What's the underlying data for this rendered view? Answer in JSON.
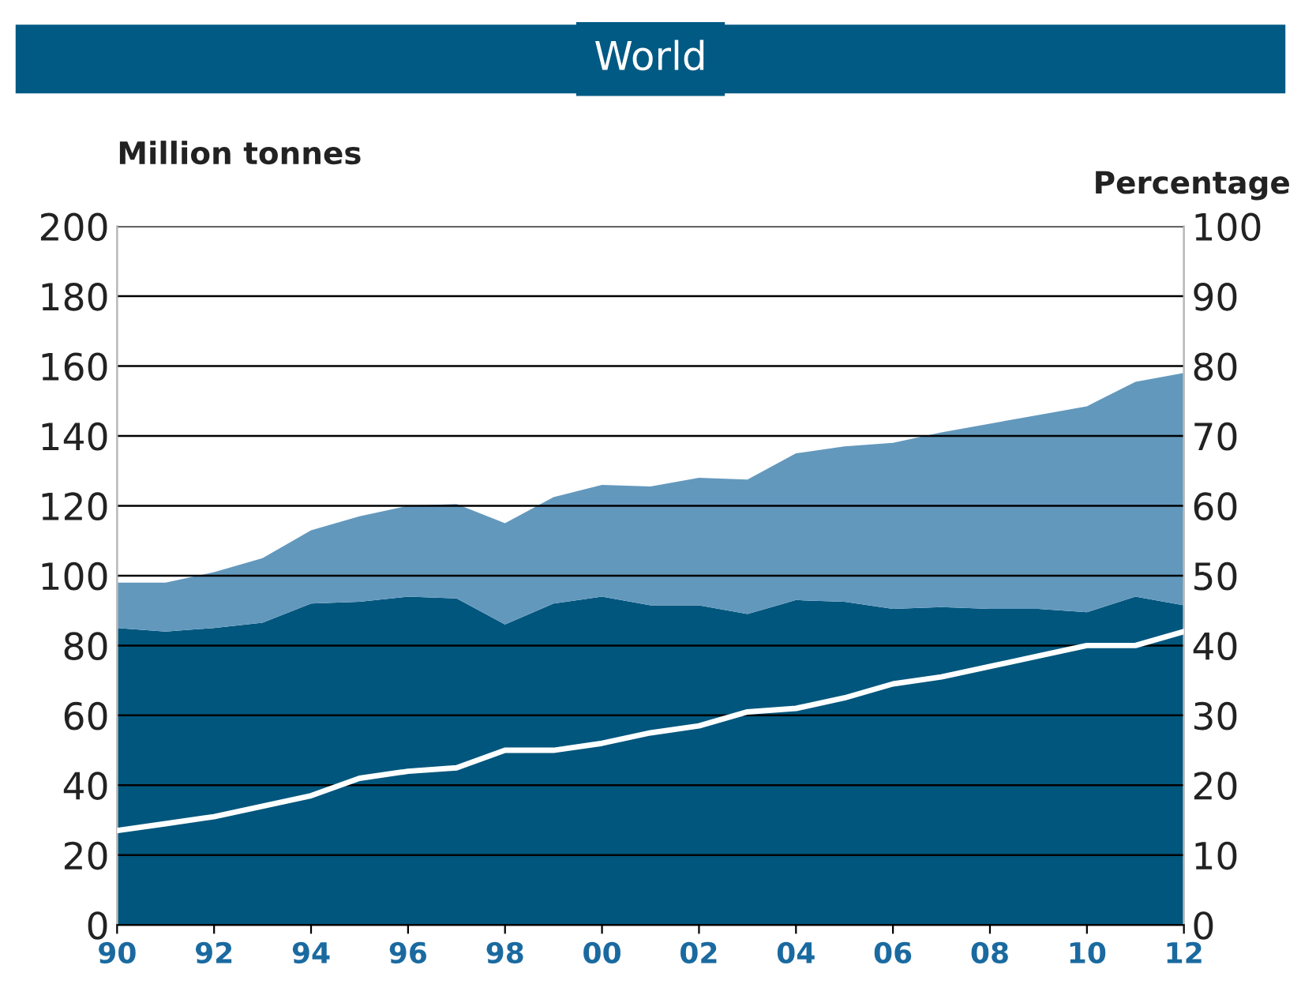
{
  "chart_data": {
    "type": "area",
    "title": "World",
    "ylabel": "Million tonnes",
    "y2label": "Percentage",
    "stacked": true,
    "x": [
      1990,
      1991,
      1992,
      1993,
      1994,
      1995,
      1996,
      1997,
      1998,
      1999,
      2000,
      2001,
      2002,
      2003,
      2004,
      2005,
      2006,
      2007,
      2008,
      2009,
      2010,
      2011,
      2012
    ],
    "series": [
      {
        "color": "#00567d",
        "values": [
          85,
          84,
          85,
          86.5,
          92,
          92.5,
          94,
          93.5,
          86,
          92,
          94,
          91.5,
          91.5,
          89,
          93,
          92.5,
          90.5,
          91,
          90.5,
          90.5,
          89.5,
          94,
          91.5
        ]
      },
      {
        "color": "#6398bd",
        "values": [
          13,
          14,
          16,
          18.5,
          21,
          24.5,
          26,
          27,
          29,
          30.5,
          32,
          34,
          36.5,
          38.5,
          42,
          44.5,
          47.5,
          50,
          53,
          55.5,
          59,
          61.5,
          66.5
        ]
      },
      {
        "type": "line",
        "axis": "y2",
        "color": "#ffffff",
        "values": [
          13.5,
          14.5,
          15.5,
          17,
          18.5,
          21,
          22,
          22.5,
          25,
          25,
          26,
          27.5,
          28.5,
          30.5,
          31,
          32.5,
          34.5,
          35.5,
          37,
          38.5,
          40,
          40,
          42
        ]
      }
    ],
    "xlim": [
      1990,
      2012
    ],
    "xticks": [
      {
        "value": 1990,
        "label": "90"
      },
      {
        "value": 1992,
        "label": "92"
      },
      {
        "value": 1994,
        "label": "94"
      },
      {
        "value": 1996,
        "label": "96"
      },
      {
        "value": 1998,
        "label": "98"
      },
      {
        "value": 2000,
        "label": "00"
      },
      {
        "value": 2002,
        "label": "02"
      },
      {
        "value": 2004,
        "label": "04"
      },
      {
        "value": 2006,
        "label": "06"
      },
      {
        "value": 2008,
        "label": "08"
      },
      {
        "value": 2010,
        "label": "10"
      },
      {
        "value": 2012,
        "label": "12"
      }
    ],
    "ylim": [
      0,
      200
    ],
    "yticks": [
      0,
      20,
      40,
      60,
      80,
      100,
      120,
      140,
      160,
      180,
      200
    ],
    "y2lim": [
      0,
      100
    ],
    "y2ticks": [
      0,
      10,
      20,
      30,
      40,
      50,
      60,
      70,
      80,
      90,
      100
    ],
    "grid": "y"
  }
}
